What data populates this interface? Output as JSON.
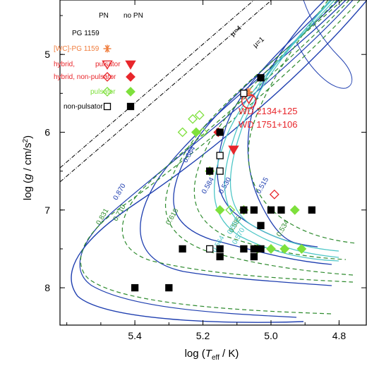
{
  "chart_data": {
    "type": "scatter",
    "xlabel": "log (T_eff / K)",
    "ylabel": "log (g / cm/s²)",
    "x_reversed": true,
    "y_reversed": true,
    "xlim": [
      5.62,
      4.72
    ],
    "ylim": [
      4.3,
      8.48
    ],
    "x_ticks": [
      {
        "value": 5.4,
        "label": "5.4"
      },
      {
        "value": 5.2,
        "label": "5.2"
      },
      {
        "value": 5.0,
        "label": "5.0"
      },
      {
        "value": 4.8,
        "label": "4.8"
      }
    ],
    "y_ticks": [
      {
        "value": 5,
        "label": "5"
      },
      {
        "value": 6,
        "label": "6"
      },
      {
        "value": 7,
        "label": "7"
      },
      {
        "value": 8,
        "label": "8"
      }
    ],
    "legend": {
      "col_headers": [
        "PN",
        "no PN"
      ],
      "group_header": "PG 1159",
      "rows": [
        {
          "label": "[WC]-PG 1159",
          "color": "#f07c3c",
          "pn": "asterisk"
        },
        {
          "label": "hybrid,",
          "label2": "pulsator",
          "color": "#e8262b",
          "pn": "tri-open",
          "nopn": "tri-filled"
        },
        {
          "label": "hybrid, non-pulsator",
          "color": "#e8262b",
          "pn": "diamond-open",
          "nopn": "diamond-filled"
        },
        {
          "label": "pulsator",
          "color": "#7ee03c",
          "pn": "diamond-open",
          "nopn": "diamond-filled"
        },
        {
          "label": "non-pulsator",
          "color": "#000000",
          "pn": "square-open",
          "nopn": "square-filled"
        }
      ]
    },
    "annotations": {
      "mu4": "μ=4",
      "mu1": "μ=1",
      "wd1": "WD 2134+125",
      "wd2": "WD 1751+106"
    },
    "track_labels": [
      {
        "text": "0.870",
        "x": 5.44,
        "y": 6.78,
        "color": "#1f3fb0"
      },
      {
        "text": "0.831",
        "x": 5.49,
        "y": 7.1,
        "color": "#2e8b2e"
      },
      {
        "text": "0.710",
        "x": 5.44,
        "y": 7.05,
        "color": "#2e8b2e"
      },
      {
        "text": "0.664",
        "x": 5.235,
        "y": 6.3,
        "color": "#1f3fb0"
      },
      {
        "text": "0.618",
        "x": 5.285,
        "y": 7.1,
        "color": "#2e8b2e"
      },
      {
        "text": "0.584",
        "x": 5.18,
        "y": 6.7,
        "color": "#1f3fb0"
      },
      {
        "text": "0.585",
        "x": 5.1,
        "y": 7.2,
        "color": "#2e8b2e"
      },
      {
        "text": "0.530",
        "x": 5.13,
        "y": 6.7,
        "color": "#1f3fb0"
      },
      {
        "text": "0.515",
        "x": 5.02,
        "y": 6.7,
        "color": "#1f3fb0"
      },
      {
        "text": "0.534",
        "x": 4.96,
        "y": 7.25,
        "color": "#2e8b2e"
      },
      {
        "text": "0.552",
        "x": 5.105,
        "y": 7.22,
        "color": "#4fc7c7"
      },
      {
        "text": "0.570",
        "x": 5.09,
        "y": 7.35,
        "color": "#4fc7c7"
      },
      {
        "text": "0.564",
        "x": 5.15,
        "y": 7.45,
        "color": "#4fc7c7"
      }
    ],
    "series": [
      {
        "name": "[WC]-PG 1159",
        "marker": "asterisk",
        "color": "#f07c3c",
        "points": [
          [
            5.065,
            5.48
          ]
        ]
      },
      {
        "name": "hybrid, pulsator (PN)",
        "marker": "tri-open",
        "color": "#e8262b",
        "points": [
          [
            5.065,
            5.57
          ]
        ]
      },
      {
        "name": "hybrid, pulsator (no PN)",
        "marker": "tri-filled",
        "color": "#e8262b",
        "points": [
          [
            5.11,
            6.22
          ]
        ]
      },
      {
        "name": "hybrid, non-pulsator (PN)",
        "marker": "diamond-open",
        "color": "#e8262b",
        "points": [
          [
            4.99,
            6.8
          ]
        ]
      },
      {
        "name": "hybrid, non-pulsator (no PN)",
        "marker": "diamond-filled",
        "color": "#e8262b",
        "points": [
          [
            5.155,
            6.0
          ]
        ]
      },
      {
        "name": "pulsator (PN)",
        "marker": "diamond-open",
        "color": "#7ee03c",
        "points": [
          [
            5.26,
            6.0
          ],
          [
            5.23,
            5.83
          ],
          [
            5.21,
            5.78
          ],
          [
            5.2,
            6.0
          ],
          [
            5.12,
            7.0
          ]
        ]
      },
      {
        "name": "pulsator (no PN)",
        "marker": "diamond-filled",
        "color": "#7ee03c",
        "points": [
          [
            5.22,
            6.0
          ],
          [
            5.15,
            7.0
          ],
          [
            5.08,
            7.0
          ],
          [
            5.18,
            6.5
          ],
          [
            4.93,
            7.0
          ],
          [
            5.04,
            7.5
          ],
          [
            5.0,
            7.5
          ],
          [
            4.96,
            7.5
          ],
          [
            4.91,
            7.5
          ]
        ]
      },
      {
        "name": "non-pulsator (PN)",
        "marker": "square-open",
        "color": "#000000",
        "points": [
          [
            5.08,
            5.5
          ],
          [
            5.15,
            6.3
          ],
          [
            5.15,
            6.5
          ],
          [
            5.18,
            7.5
          ]
        ]
      },
      {
        "name": "non-pulsator (no PN)",
        "marker": "square-filled",
        "color": "#000000",
        "points": [
          [
            5.03,
            5.3
          ],
          [
            5.15,
            6.0
          ],
          [
            5.4,
            8.0
          ],
          [
            5.3,
            8.0
          ],
          [
            5.26,
            7.5
          ],
          [
            5.15,
            7.5
          ],
          [
            5.15,
            7.6
          ],
          [
            5.08,
            7.0
          ],
          [
            5.08,
            7.5
          ],
          [
            5.05,
            7.0
          ],
          [
            5.05,
            7.5
          ],
          [
            5.05,
            7.6
          ],
          [
            5.03,
            7.2
          ],
          [
            5.03,
            7.5
          ],
          [
            5.0,
            7.0
          ],
          [
            4.97,
            7.0
          ],
          [
            4.88,
            7.0
          ],
          [
            5.18,
            6.5
          ]
        ]
      }
    ]
  }
}
